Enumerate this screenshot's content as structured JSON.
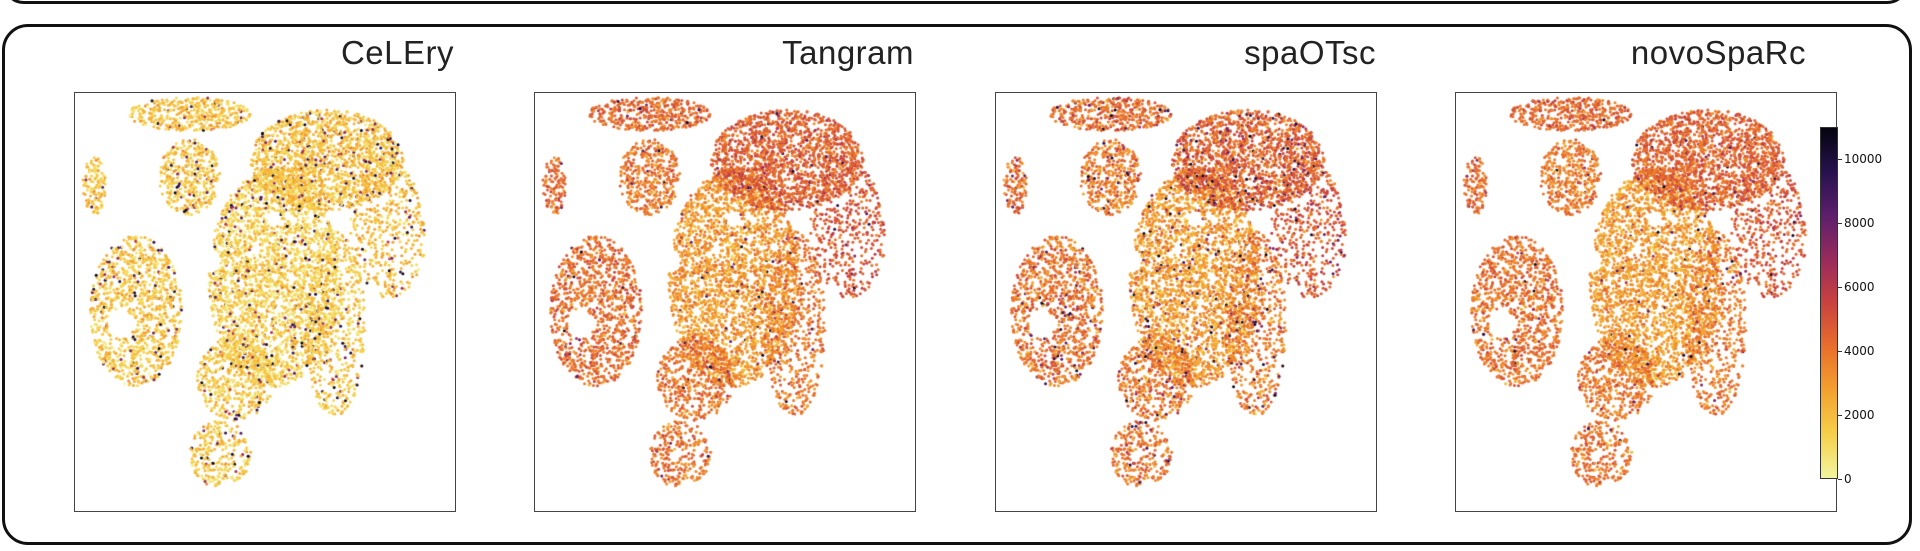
{
  "chart_data": {
    "type": "scatter",
    "description_free": true,
    "panels": [
      {
        "title": "CeLEry",
        "mean": 1500,
        "spread": 1400,
        "outlier_rate": 0.07
      },
      {
        "title": "Tangram",
        "mean": 3600,
        "spread": 1500,
        "outlier_rate": 0.02
      },
      {
        "title": "spaOTsc",
        "mean": 3500,
        "spread": 1700,
        "outlier_rate": 0.06
      },
      {
        "title": "novoSpaRc",
        "mean": 3500,
        "spread": 1400,
        "outlier_rate": 0.02
      }
    ],
    "colorbar": {
      "colormap": "inferno_r",
      "range": [
        0,
        11000
      ],
      "ticks": [
        0,
        2000,
        4000,
        6000,
        8000,
        10000
      ],
      "tick_labels": [
        "0",
        "2000",
        "4000",
        "6000",
        "8000",
        "10000"
      ],
      "colors": [
        "#f2f5a0",
        "#f5d04a",
        "#f3a12e",
        "#e86e2c",
        "#c9423f",
        "#982b5c",
        "#5c1f6c",
        "#26124d",
        "#05040f"
      ]
    }
  }
}
